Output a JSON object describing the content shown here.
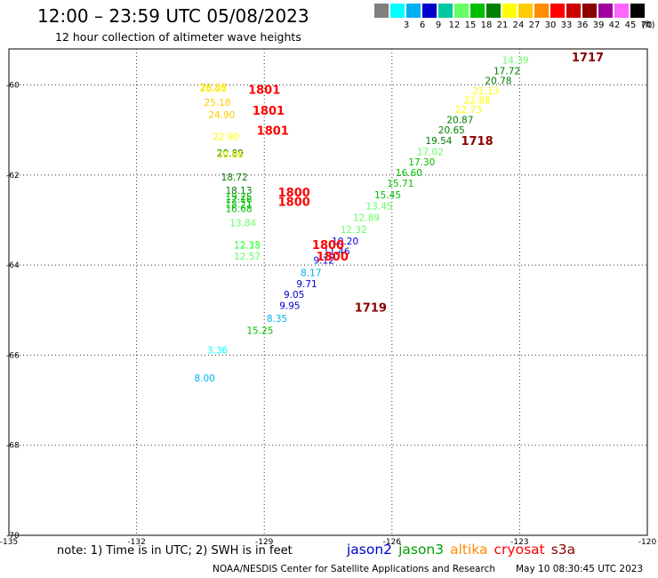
{
  "header": {
    "title": "12:00 – 23:59 UTC 05/08/2023",
    "subtitle": "12 hour collection of altimeter wave heights"
  },
  "legend": {
    "unit": "(ft)",
    "bins": [
      {
        "label": "",
        "color": "#808080"
      },
      {
        "label": "3",
        "color": "#00ffff"
      },
      {
        "label": "6",
        "color": "#00b0f0"
      },
      {
        "label": "9",
        "color": "#0000cd"
      },
      {
        "label": "12",
        "color": "#00c8a0"
      },
      {
        "label": "15",
        "color": "#66ff66"
      },
      {
        "label": "18",
        "color": "#00bf00"
      },
      {
        "label": "21",
        "color": "#007f00"
      },
      {
        "label": "24",
        "color": "#ffff00"
      },
      {
        "label": "27",
        "color": "#ffcc00"
      },
      {
        "label": "30",
        "color": "#ff8c00"
      },
      {
        "label": "33",
        "color": "#ff0000"
      },
      {
        "label": "36",
        "color": "#cc0000"
      },
      {
        "label": "39",
        "color": "#8b0000"
      },
      {
        "label": "42",
        "color": "#a000a0"
      },
      {
        "label": "45",
        "color": "#ff66ff"
      },
      {
        "label": "70",
        "color": "#000000"
      }
    ]
  },
  "map": {
    "lon_range": [
      -135,
      -120
    ],
    "lat_range": [
      -70,
      -59.2
    ],
    "grid_lons": [
      -132,
      -129,
      -126,
      -123
    ],
    "grid_lats": [
      -60,
      -62,
      -64,
      -66,
      -68
    ],
    "x_tick_labels": [
      "-135",
      "-132",
      "-129",
      "-126",
      "-123",
      "-120"
    ],
    "y_tick_labels": [
      "-60",
      "-62",
      "-64",
      "-66",
      "-68",
      "-70"
    ],
    "wave_heights": [
      {
        "lon": -130.2,
        "lat": -60.13,
        "text": "26.86",
        "color": "#ffcc00"
      },
      {
        "lon": -130.2,
        "lat": -60.16,
        "text": "26.26",
        "color": "#ffff00"
      },
      {
        "lon": -130.1,
        "lat": -60.46,
        "text": "25.18",
        "color": "#ffcc00"
      },
      {
        "lon": -130.0,
        "lat": -60.74,
        "text": "24.90",
        "color": "#ffcc00"
      },
      {
        "lon": -129.9,
        "lat": -61.22,
        "text": "22.90",
        "color": "#ffff00"
      },
      {
        "lon": -129.8,
        "lat": -61.59,
        "text": "20.89",
        "color": "#007f00"
      },
      {
        "lon": -129.8,
        "lat": -61.62,
        "text": "20.86",
        "color": "#ffff00"
      },
      {
        "lon": -129.7,
        "lat": -62.12,
        "text": "18.72",
        "color": "#007f00"
      },
      {
        "lon": -129.6,
        "lat": -62.42,
        "text": "18.13",
        "color": "#007f00"
      },
      {
        "lon": -129.6,
        "lat": -62.56,
        "text": "19.25",
        "color": "#00bf00"
      },
      {
        "lon": -129.6,
        "lat": -62.62,
        "text": "17.16",
        "color": "#00bf00"
      },
      {
        "lon": -129.6,
        "lat": -62.72,
        "text": "18.21",
        "color": "#00bf00"
      },
      {
        "lon": -129.6,
        "lat": -62.82,
        "text": "16.68",
        "color": "#00bf00"
      },
      {
        "lon": -129.5,
        "lat": -63.14,
        "text": "13.84",
        "color": "#66ff66"
      },
      {
        "lon": -129.4,
        "lat": -63.62,
        "text": "12.15",
        "color": "#66ff66"
      },
      {
        "lon": -129.4,
        "lat": -63.64,
        "text": "12.38",
        "color": "#66ff66"
      },
      {
        "lon": -129.4,
        "lat": -63.88,
        "text": "12.57",
        "color": "#66ff66"
      },
      {
        "lon": -130.1,
        "lat": -65.96,
        "text": "3.36",
        "color": "#00ffff"
      },
      {
        "lon": -129.1,
        "lat": -65.53,
        "text": "15.25",
        "color": "#00bf00"
      },
      {
        "lon": -128.7,
        "lat": -65.26,
        "text": "8.35",
        "color": "#00b0f0"
      },
      {
        "lon": -128.4,
        "lat": -64.98,
        "text": "9.95",
        "color": "#0000cd"
      },
      {
        "lon": -128.3,
        "lat": -64.73,
        "text": "9.05",
        "color": "#0000cd"
      },
      {
        "lon": -128.0,
        "lat": -64.49,
        "text": "9.71",
        "color": "#0000cd"
      },
      {
        "lon": -127.9,
        "lat": -64.24,
        "text": "8.17",
        "color": "#00b0f0"
      },
      {
        "lon": -127.6,
        "lat": -63.97,
        "text": "9.12",
        "color": "#0000cd"
      },
      {
        "lon": -127.3,
        "lat": -63.77,
        "text": "11.46",
        "color": "#0000cd"
      },
      {
        "lon": -127.1,
        "lat": -63.54,
        "text": "10.20",
        "color": "#0000cd"
      },
      {
        "lon": -126.9,
        "lat": -63.29,
        "text": "12.32",
        "color": "#66ff66"
      },
      {
        "lon": -126.6,
        "lat": -63.02,
        "text": "12.89",
        "color": "#66ff66"
      },
      {
        "lon": -126.3,
        "lat": -62.76,
        "text": "13.45",
        "color": "#66ff66"
      },
      {
        "lon": -126.1,
        "lat": -62.52,
        "text": "15.45",
        "color": "#00bf00"
      },
      {
        "lon": -125.8,
        "lat": -62.26,
        "text": "15.71",
        "color": "#00bf00"
      },
      {
        "lon": -125.6,
        "lat": -62.02,
        "text": "16.60",
        "color": "#00bf00"
      },
      {
        "lon": -125.3,
        "lat": -61.79,
        "text": "17.30",
        "color": "#00bf00"
      },
      {
        "lon": -125.1,
        "lat": -61.56,
        "text": "17.02",
        "color": "#66ff66"
      },
      {
        "lon": -124.9,
        "lat": -61.31,
        "text": "19.54",
        "color": "#007f00"
      },
      {
        "lon": -124.6,
        "lat": -61.08,
        "text": "20.65",
        "color": "#007f00"
      },
      {
        "lon": -124.4,
        "lat": -60.85,
        "text": "20.87",
        "color": "#007f00"
      },
      {
        "lon": -124.2,
        "lat": -60.62,
        "text": "22.73",
        "color": "#ffff00"
      },
      {
        "lon": -124.0,
        "lat": -60.41,
        "text": "22.88",
        "color": "#ffff00"
      },
      {
        "lon": -123.8,
        "lat": -60.21,
        "text": "21.13",
        "color": "#ffff00"
      },
      {
        "lon": -123.5,
        "lat": -59.98,
        "text": "20.78",
        "color": "#007f00"
      },
      {
        "lon": -123.3,
        "lat": -59.76,
        "text": "17.72",
        "color": "#007f00"
      },
      {
        "lon": -123.1,
        "lat": -59.53,
        "text": "14.39",
        "color": "#66ff66"
      },
      {
        "lon": -130.4,
        "lat": -66.58,
        "text": "8.00",
        "color": "#00b0f0"
      }
    ],
    "time_labels": [
      {
        "lon": -129.0,
        "lat": -60.2,
        "text": "1801",
        "color": "#ff0000"
      },
      {
        "lon": -128.9,
        "lat": -60.66,
        "text": "1801",
        "color": "#ff0000"
      },
      {
        "lon": -128.8,
        "lat": -61.11,
        "text": "1801",
        "color": "#ff0000"
      },
      {
        "lon": -128.3,
        "lat": -62.48,
        "text": "1800",
        "color": "#ff0000"
      },
      {
        "lon": -128.3,
        "lat": -62.68,
        "text": "1800",
        "color": "#ff0000"
      },
      {
        "lon": -127.5,
        "lat": -63.64,
        "text": "1800",
        "color": "#ff0000"
      },
      {
        "lon": -127.4,
        "lat": -63.9,
        "text": "1800",
        "color": "#ff0000"
      },
      {
        "lon": -126.5,
        "lat": -65.03,
        "text": "1719",
        "color": "#8b0000"
      },
      {
        "lon": -124.0,
        "lat": -61.33,
        "text": "1718",
        "color": "#8b0000"
      },
      {
        "lon": -121.4,
        "lat": -59.48,
        "text": "1717",
        "color": "#8b0000"
      }
    ]
  },
  "footer": {
    "note": "note: 1) Time is in UTC; 2) SWH is in feet",
    "satellites": [
      {
        "name": "jason2",
        "color": "#0000cd"
      },
      {
        "name": "jason3",
        "color": "#00a000"
      },
      {
        "name": "altika",
        "color": "#ff8c00"
      },
      {
        "name": "cryosat",
        "color": "#ff0000"
      },
      {
        "name": "s3a",
        "color": "#8b0000"
      }
    ],
    "credit": "NOAA/NESDIS Center for Satellite Applications and Research",
    "timestamp": "May 10 08:30:45 UTC 2023"
  }
}
